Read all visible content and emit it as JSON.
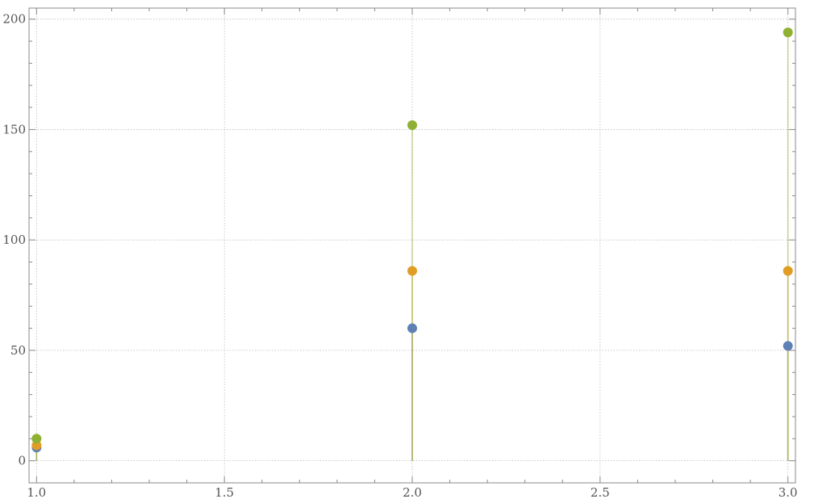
{
  "chart_data": {
    "type": "scatter",
    "title": "",
    "xlabel": "",
    "ylabel": "",
    "x": [
      1.0,
      2.0,
      3.0
    ],
    "xlim": [
      0.98,
      3.02
    ],
    "ylim": [
      -10,
      205
    ],
    "xticks": [
      1.0,
      1.5,
      2.0,
      2.5,
      3.0
    ],
    "xtick_labels": [
      "1.0",
      "1.5",
      "2.0",
      "2.5",
      "3.0"
    ],
    "yticks": [
      0,
      50,
      100,
      150,
      200
    ],
    "ytick_labels": [
      "0",
      "50",
      "100",
      "150",
      "200"
    ],
    "grid": true,
    "filling_to_axis": true,
    "series": [
      {
        "color": "#5e81b5",
        "values": [
          6,
          60,
          52
        ]
      },
      {
        "color": "#e19c24",
        "values": [
          7,
          86,
          86
        ]
      },
      {
        "color": "#8fb032",
        "values": [
          10,
          152,
          194
        ]
      }
    ]
  }
}
